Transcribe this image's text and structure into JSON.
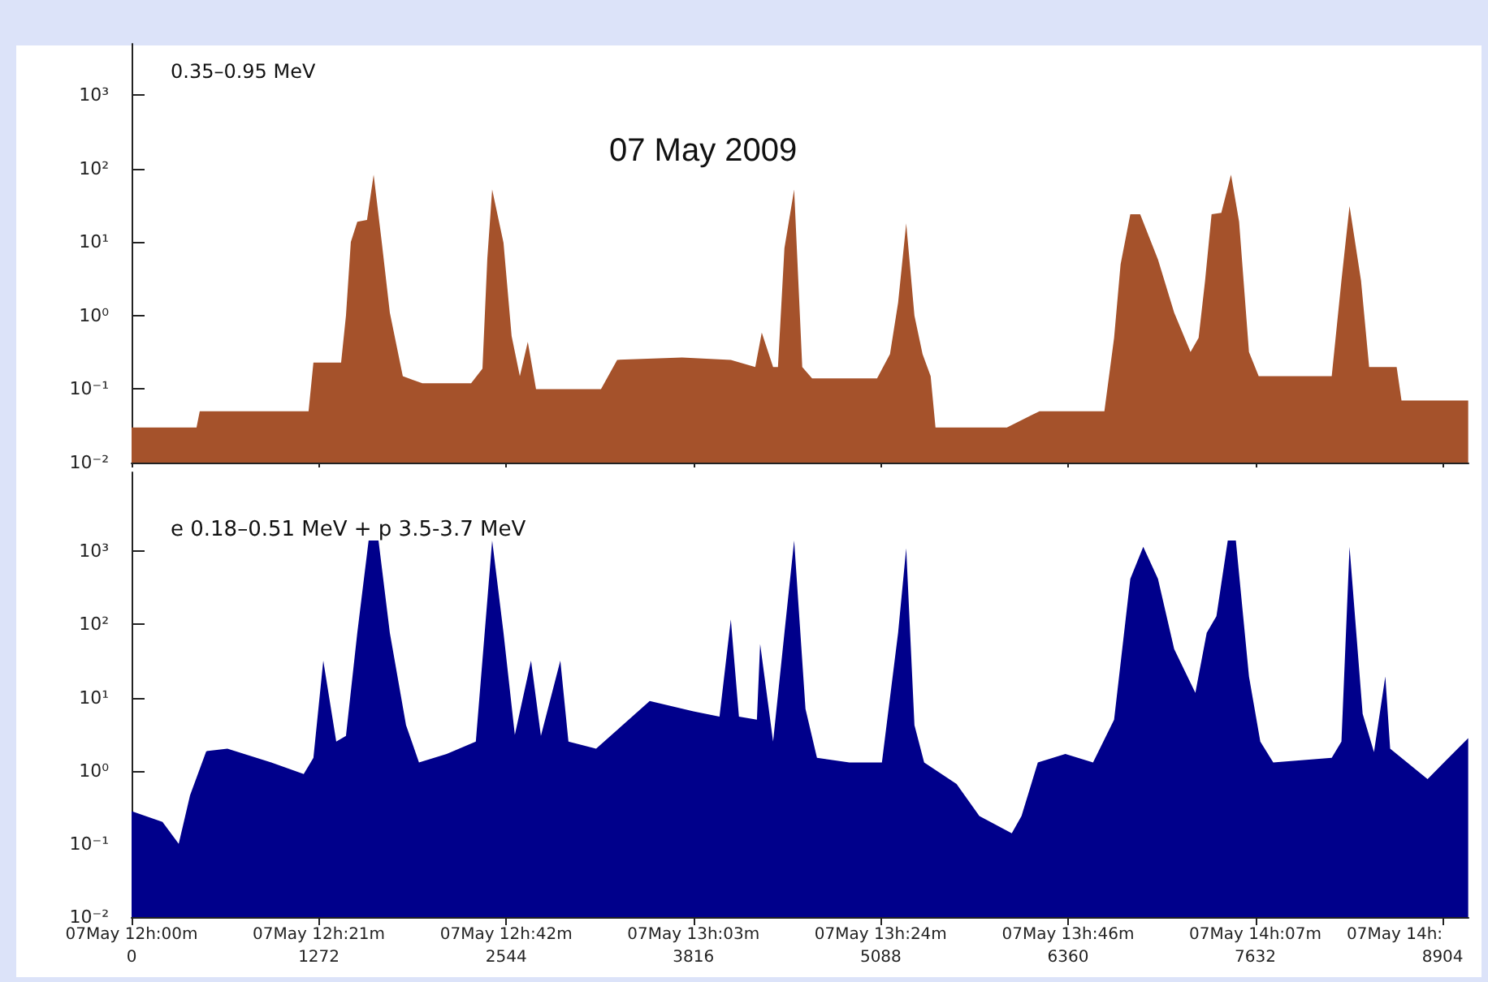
{
  "chart_data": [
    {
      "type": "area",
      "title": "07 May 2009",
      "subtitle": "0.35–0.95 MeV",
      "log": "y",
      "grid": false,
      "marker": "none",
      "tick_labels": "y",
      "xlim": [
        0,
        9080
      ],
      "xticks": [
        0,
        1272,
        2544,
        3816,
        5088,
        6360,
        7632,
        8904
      ],
      "ylim": [
        0.01,
        5000
      ],
      "yticks": [
        {
          "value": 0.01,
          "label": "10⁻²"
        },
        {
          "value": 0.1,
          "label": "10⁻¹"
        },
        {
          "value": 1,
          "label": "10⁰"
        },
        {
          "value": 10,
          "label": "10¹"
        },
        {
          "value": 100,
          "label": "10²"
        },
        {
          "value": 1000,
          "label": "10³"
        }
      ],
      "x": [
        0,
        210,
        441,
        463,
        761,
        1202,
        1235,
        1423,
        1456,
        1489,
        1533,
        1599,
        1644,
        1699,
        1754,
        1842,
        1975,
        2306,
        2383,
        2416,
        2449,
        2526,
        2581,
        2637,
        2691,
        2747,
        3188,
        3298,
        3739,
        4070,
        4236,
        4280,
        4357,
        4390,
        4434,
        4500,
        4555,
        4622,
        5063,
        5151,
        5206,
        5261,
        5317,
        5372,
        5427,
        5460,
        5945,
        6166,
        6607,
        6673,
        6717,
        6783,
        6850,
        6971,
        7081,
        7192,
        7247,
        7291,
        7335,
        7401,
        7467,
        7522,
        7589,
        7655,
        8151,
        8217,
        8272,
        8350,
        8405,
        8592,
        8625,
        9078
      ],
      "series": [
        {
          "color": "#a5522b",
          "values": [
            0.03,
            0.03,
            0.03,
            0.05,
            0.05,
            0.05,
            0.23,
            0.23,
            1,
            10,
            19,
            20,
            83,
            10,
            1.1,
            0.15,
            0.12,
            0.12,
            0.19,
            5.9,
            52,
            9.8,
            0.53,
            0.15,
            0.44,
            0.1,
            0.1,
            0.25,
            0.27,
            0.25,
            0.2,
            0.59,
            0.2,
            0.2,
            8.3,
            52,
            0.2,
            0.14,
            0.14,
            0.3,
            1.5,
            18,
            1,
            0.3,
            0.15,
            0.03,
            0.03,
            0.05,
            0.05,
            0.5,
            5,
            24,
            24,
            5.8,
            1.1,
            0.32,
            0.5,
            3,
            24,
            25,
            83,
            19,
            0.32,
            0.15,
            0.15,
            3,
            31,
            3,
            0.2,
            0.2,
            0.07,
            0.07
          ]
        }
      ]
    },
    {
      "type": "area",
      "title": "e 0.18–0.51 MeV + p 3.5-3.7 MeV",
      "log": "y",
      "grid": false,
      "marker": "none",
      "xlim": [
        0,
        9080
      ],
      "xticks": [
        0,
        1272,
        2544,
        3816,
        5088,
        6360,
        7632,
        8904
      ],
      "x2lim": [
        "2009-05-07T12:00:00",
        "2009-05-07T14:31:20"
      ],
      "x2ticks": [
        {
          "value": "2009-05-07T12:00:00",
          "label": "07May 12h:00m"
        },
        {
          "value": "2009-05-07T12:21:12",
          "label": "07May 12h:21m"
        },
        {
          "value": "2009-05-07T12:42:24",
          "label": "07May 12h:42m"
        },
        {
          "value": "2009-05-07T13:03:36",
          "label": "07May 13h:03m"
        },
        {
          "value": "2009-05-07T13:24:48",
          "label": "07May 13h:24m"
        },
        {
          "value": "2009-05-07T13:46:00",
          "label": "07May 13h:46m"
        },
        {
          "value": "2009-05-07T14:07:12",
          "label": "07May 14h:07m"
        },
        {
          "value": "2009-05-07T14:28:24",
          "label": "07May 14h:"
        }
      ],
      "ylim": [
        0.01,
        12000
      ],
      "yticks": [
        {
          "value": 0.01,
          "label": "10⁻²"
        },
        {
          "value": 0.1,
          "label": "10⁻¹"
        },
        {
          "value": 1,
          "label": "10⁰"
        },
        {
          "value": 10,
          "label": "10¹"
        },
        {
          "value": 100,
          "label": "10²"
        },
        {
          "value": 1000,
          "label": "10³"
        }
      ],
      "x": [
        0,
        210,
        320,
        397,
        507,
        651,
        949,
        1169,
        1235,
        1302,
        1390,
        1456,
        1533,
        1610,
        1677,
        1754,
        1864,
        1952,
        2140,
        2338,
        2449,
        2526,
        2603,
        2713,
        2780,
        2912,
        2967,
        3155,
        3519,
        3816,
        3993,
        4070,
        4125,
        4247,
        4269,
        4357,
        4434,
        4500,
        4577,
        4655,
        4875,
        5096,
        5206,
        5261,
        5317,
        5383,
        5603,
        5758,
        5978,
        6044,
        6155,
        6342,
        6530,
        6673,
        6783,
        6871,
        6971,
        7081,
        7225,
        7302,
        7368,
        7445,
        7500,
        7589,
        7666,
        7754,
        8151,
        8217,
        8272,
        8361,
        8438,
        8515,
        8548,
        8802,
        9078
      ],
      "series": [
        {
          "color": "#00008b",
          "values": [
            0.28,
            0.2,
            0.1,
            0.46,
            1.85,
            2,
            1.3,
            0.9,
            1.5,
            32,
            2.5,
            3,
            77,
            1400,
            1400,
            77,
            4.2,
            1.3,
            1.7,
            2.5,
            1400,
            77,
            3.1,
            32,
            3,
            32,
            2.5,
            2,
            9,
            6.5,
            5.5,
            117,
            5.5,
            5,
            54,
            2.5,
            77,
            1400,
            7,
            1.5,
            1.3,
            1.3,
            77,
            1100,
            4.2,
            1.3,
            0.66,
            0.24,
            0.14,
            0.24,
            1.3,
            1.7,
            1.3,
            5,
            420,
            1150,
            420,
            46,
            11.6,
            77,
            130,
            1400,
            1400,
            19.5,
            2.5,
            1.3,
            1.5,
            2.5,
            1150,
            6,
            1.8,
            19.5,
            2,
            0.77,
            2.8
          ]
        }
      ]
    }
  ]
}
